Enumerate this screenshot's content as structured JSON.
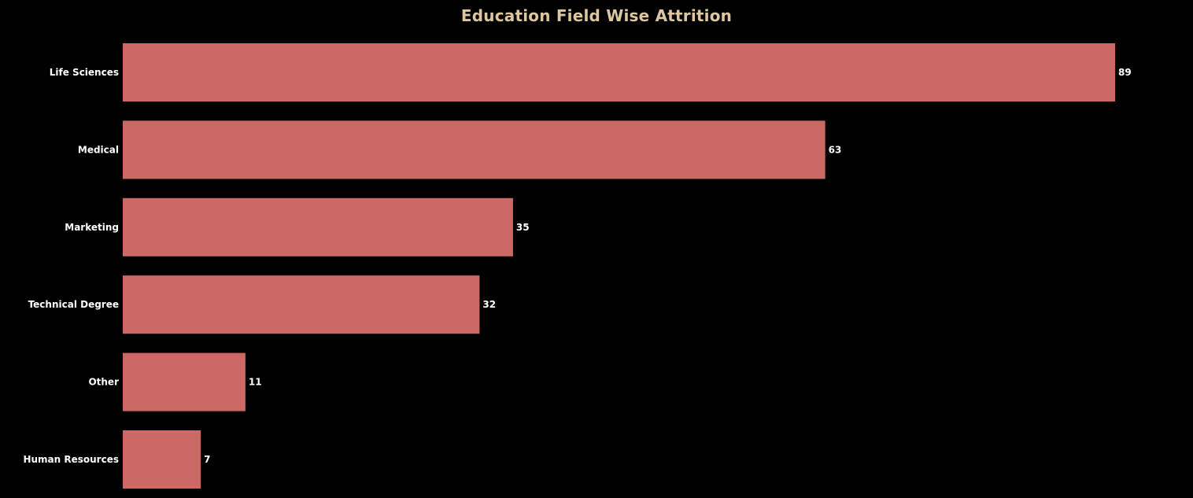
{
  "chart_data": {
    "type": "bar",
    "orientation": "horizontal",
    "title": "Education Field Wise Attrition",
    "categories": [
      "Life Sciences",
      "Medical",
      "Marketing",
      "Technical Degree",
      "Other",
      "Human Resources"
    ],
    "values": [
      89,
      63,
      35,
      32,
      11,
      7
    ],
    "xlabel": "",
    "ylabel": "",
    "xlim": [
      0,
      89
    ],
    "grid": false,
    "legend": "none",
    "data_labels": true
  },
  "colors": {
    "background": "#000000",
    "bar": "#cc6966",
    "title": "#dcc7a1",
    "label": "#ffffff"
  }
}
